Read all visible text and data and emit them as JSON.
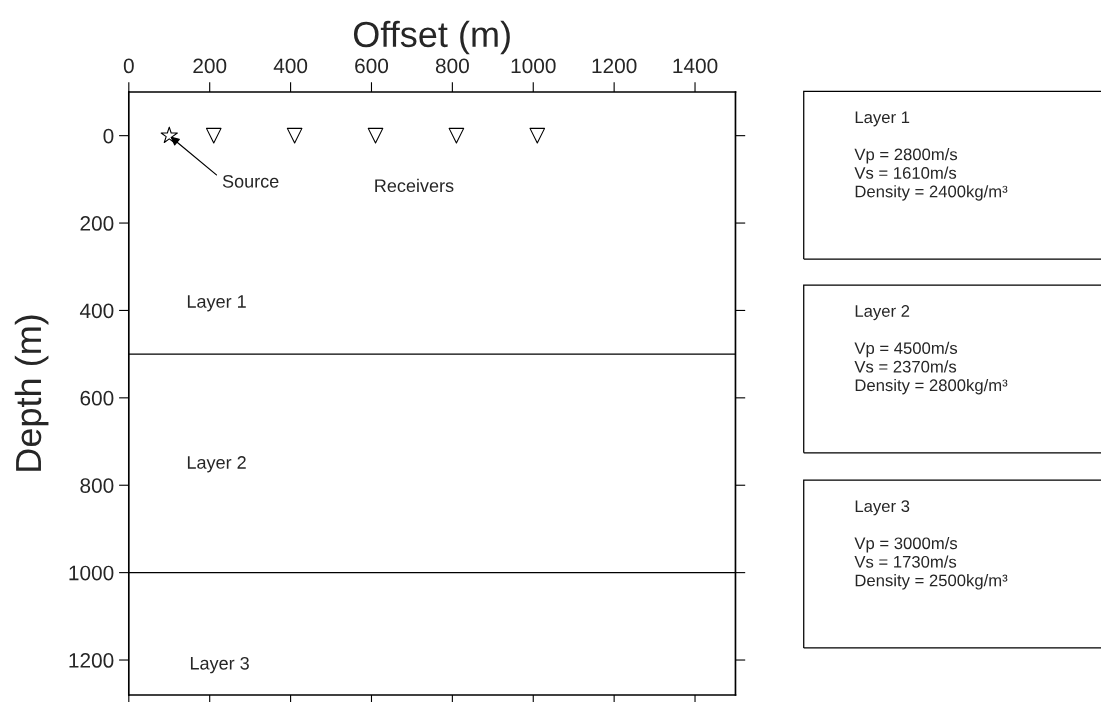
{
  "chart_data": {
    "type": "scatter",
    "xlabel": "Offset (m)",
    "ylabel": "Depth (m)",
    "xlim": [
      0,
      1500
    ],
    "xticks": [
      0,
      200,
      400,
      600,
      800,
      1000,
      1200,
      1400
    ],
    "ylim": [
      1280,
      -100
    ],
    "yticks": [
      0,
      200,
      400,
      600,
      800,
      1000,
      1200
    ],
    "grid": false,
    "legend": false,
    "series": [
      {
        "color": "#000000",
        "marker": "star",
        "x": [
          100
        ],
        "values": [
          0
        ]
      },
      {
        "color": "#000000",
        "marker": "triangle",
        "x": [
          210,
          410,
          610,
          810,
          1010
        ],
        "values": [
          0,
          0,
          0,
          0,
          0
        ]
      }
    ],
    "ref_lines": [
      {
        "axis": "y",
        "value": 500,
        "color": "#000000",
        "line_style": "solid"
      },
      {
        "axis": "y",
        "value": 1000,
        "color": "#000000",
        "line_style": "solid"
      }
    ],
    "annotations": [
      {
        "text": "Source",
        "x": 100,
        "y": 0
      },
      "Receivers",
      "Layer 1",
      "Layer 2",
      "Layer 3",
      "Layer 1\n\nVp = 2800m/s\nVs = 1610m/s\nDensity = 2400kg/m³",
      "Layer 2\n\nVp = 4500m/s\nVs = 2370m/s\nDensity = 2800kg/m³",
      "Layer 3\n\nVp = 3000m/s\nVs = 1730m/s\nDensity = 2500kg/m³"
    ]
  }
}
